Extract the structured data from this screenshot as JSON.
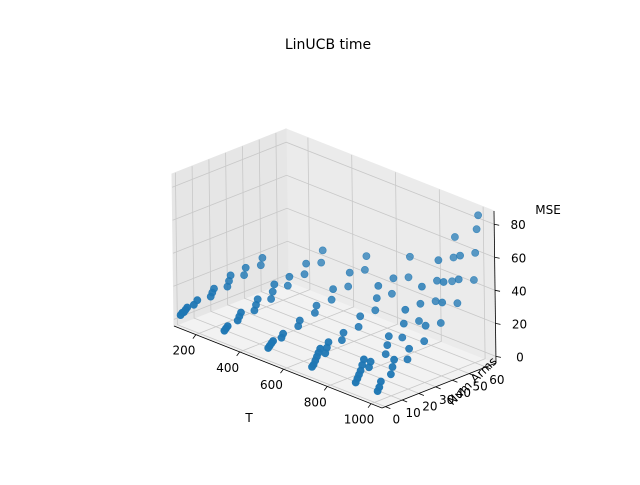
{
  "chart_data": {
    "type": "scatter3d",
    "title": "LinUCB time",
    "xlabel": "T",
    "ylabel": "Num Arms",
    "zlabel": "MSE",
    "x_ticks": [
      "200",
      "400",
      "600",
      "800",
      "1000"
    ],
    "y_ticks": [
      "0",
      "10",
      "20",
      "30",
      "40",
      "50",
      "60"
    ],
    "z_ticks": [
      "0",
      "20",
      "40",
      "60",
      "80"
    ],
    "xlim": [
      100,
      1050
    ],
    "ylim": [
      -2,
      66
    ],
    "zlim": [
      -4,
      88
    ],
    "grid": true,
    "marker_color": "#1f77b4",
    "pane_color": "#f2f2f2",
    "points": [
      [
        100,
        2,
        1
      ],
      [
        100,
        3,
        2
      ],
      [
        100,
        4,
        2
      ],
      [
        100,
        5,
        3
      ],
      [
        100,
        6,
        4
      ],
      [
        100,
        10,
        4
      ],
      [
        100,
        12,
        6
      ],
      [
        100,
        20,
        5
      ],
      [
        100,
        21,
        7
      ],
      [
        100,
        22,
        9
      ],
      [
        100,
        30,
        7
      ],
      [
        100,
        31,
        10
      ],
      [
        100,
        32,
        13
      ],
      [
        100,
        40,
        10
      ],
      [
        100,
        41,
        14
      ],
      [
        100,
        50,
        12
      ],
      [
        100,
        51,
        16
      ],
      [
        300,
        2,
        2
      ],
      [
        300,
        3,
        3
      ],
      [
        300,
        4,
        4
      ],
      [
        300,
        10,
        5
      ],
      [
        300,
        11,
        7
      ],
      [
        300,
        12,
        9
      ],
      [
        300,
        20,
        7
      ],
      [
        300,
        21,
        10
      ],
      [
        300,
        22,
        13
      ],
      [
        300,
        30,
        10
      ],
      [
        300,
        31,
        14
      ],
      [
        300,
        32,
        18
      ],
      [
        300,
        40,
        14
      ],
      [
        300,
        41,
        19
      ],
      [
        300,
        50,
        17
      ],
      [
        300,
        51,
        23
      ],
      [
        300,
        60,
        20
      ],
      [
        300,
        61,
        27
      ],
      [
        500,
        2,
        2
      ],
      [
        500,
        3,
        3
      ],
      [
        500,
        4,
        4
      ],
      [
        500,
        5,
        5
      ],
      [
        500,
        10,
        5
      ],
      [
        500,
        11,
        7
      ],
      [
        500,
        20,
        8
      ],
      [
        500,
        21,
        11
      ],
      [
        500,
        30,
        12
      ],
      [
        500,
        31,
        16
      ],
      [
        500,
        40,
        16
      ],
      [
        500,
        41,
        22
      ],
      [
        500,
        50,
        20
      ],
      [
        500,
        51,
        28
      ],
      [
        500,
        60,
        26
      ],
      [
        500,
        61,
        34
      ],
      [
        700,
        2,
        1
      ],
      [
        700,
        3,
        2
      ],
      [
        700,
        4,
        4
      ],
      [
        700,
        5,
        6
      ],
      [
        700,
        6,
        8
      ],
      [
        700,
        7,
        10
      ],
      [
        700,
        10,
        6
      ],
      [
        700,
        11,
        9
      ],
      [
        700,
        12,
        12
      ],
      [
        700,
        20,
        10
      ],
      [
        700,
        21,
        14
      ],
      [
        700,
        30,
        14
      ],
      [
        700,
        31,
        20
      ],
      [
        700,
        40,
        20
      ],
      [
        700,
        41,
        27
      ],
      [
        700,
        42,
        34
      ],
      [
        700,
        50,
        26
      ],
      [
        700,
        51,
        35
      ],
      [
        700,
        60,
        32
      ],
      [
        700,
        61,
        44
      ],
      [
        900,
        2,
        2
      ],
      [
        900,
        3,
        4
      ],
      [
        900,
        4,
        6
      ],
      [
        900,
        5,
        8
      ],
      [
        900,
        6,
        11
      ],
      [
        900,
        7,
        14
      ],
      [
        900,
        10,
        8
      ],
      [
        900,
        11,
        11
      ],
      [
        900,
        20,
        12
      ],
      [
        900,
        21,
        17
      ],
      [
        900,
        22,
        22
      ],
      [
        900,
        30,
        18
      ],
      [
        900,
        31,
        26
      ],
      [
        900,
        32,
        34
      ],
      [
        900,
        40,
        24
      ],
      [
        900,
        41,
        34
      ],
      [
        900,
        42,
        44
      ],
      [
        900,
        50,
        32
      ],
      [
        900,
        51,
        44
      ],
      [
        900,
        52,
        56
      ],
      [
        900,
        60,
        40
      ],
      [
        900,
        61,
        54
      ],
      [
        900,
        62,
        66
      ],
      [
        1000,
        2,
        2
      ],
      [
        1000,
        3,
        4
      ],
      [
        1000,
        4,
        7
      ],
      [
        1000,
        10,
        9
      ],
      [
        1000,
        11,
        13
      ],
      [
        1000,
        12,
        17
      ],
      [
        1000,
        20,
        14
      ],
      [
        1000,
        21,
        20
      ],
      [
        1000,
        30,
        21
      ],
      [
        1000,
        31,
        30
      ],
      [
        1000,
        40,
        28
      ],
      [
        1000,
        41,
        40
      ],
      [
        1000,
        42,
        52
      ],
      [
        1000,
        50,
        36
      ],
      [
        1000,
        51,
        50
      ],
      [
        1000,
        52,
        64
      ],
      [
        1000,
        60,
        46
      ],
      [
        1000,
        61,
        62
      ],
      [
        1000,
        62,
        76
      ],
      [
        1000,
        63,
        84
      ]
    ]
  }
}
